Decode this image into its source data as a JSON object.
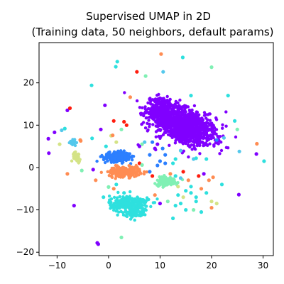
{
  "chart_data": {
    "type": "scatter",
    "title": "Supervised UMAP in 2D",
    "subtitle": "(Training data, 50 neighbors, default params)",
    "xlabel": "",
    "ylabel": "",
    "xlim": [
      -13.5,
      32
    ],
    "ylim": [
      -20.8,
      29.5
    ],
    "xticks": [
      -10,
      0,
      10,
      20,
      30
    ],
    "yticks": [
      -20,
      -10,
      0,
      10,
      20
    ],
    "grid": false,
    "legend": "none",
    "colormap": "rainbow",
    "colors": {
      "violet": "#8000ff",
      "blue": "#2c7fff",
      "cyan": "#2ee0de",
      "mint": "#80f0b4",
      "khaki": "#d4e386",
      "orange": "#ff8c52",
      "red": "#ff1c0e",
      "lightblue": "#55c8ec"
    },
    "clusters": [
      {
        "color": "violet",
        "cx": 14.5,
        "cy": 10.0,
        "sx": 3.4,
        "sy": 2.0,
        "rot": -30,
        "n": 1100
      },
      {
        "color": "violet",
        "cx": 10.0,
        "cy": 13.8,
        "sx": 1.0,
        "sy": 1.5,
        "rot": 0,
        "n": 180
      },
      {
        "color": "blue",
        "cx": 1.6,
        "cy": 2.5,
        "sx": 1.3,
        "sy": 0.55,
        "rot": 0,
        "n": 230
      },
      {
        "color": "orange",
        "cx": 3.1,
        "cy": -1.0,
        "sx": 1.5,
        "sy": 0.6,
        "rot": 0,
        "n": 220
      },
      {
        "color": "cyan",
        "cx": 4.0,
        "cy": -8.6,
        "sx": 1.9,
        "sy": 1.0,
        "rot": 0,
        "n": 230
      },
      {
        "color": "cyan",
        "cx": 5.0,
        "cy": -10.7,
        "sx": 0.9,
        "sy": 0.6,
        "rot": 0,
        "n": 70
      },
      {
        "color": "mint",
        "cx": 11.3,
        "cy": -3.2,
        "sx": 1.1,
        "sy": 0.55,
        "rot": 0,
        "n": 110
      },
      {
        "color": "khaki",
        "cx": -6.2,
        "cy": 2.5,
        "sx": 0.35,
        "sy": 0.55,
        "rot": 0,
        "n": 45
      },
      {
        "color": "lightblue",
        "cx": -6.8,
        "cy": 6.0,
        "sx": 0.35,
        "sy": 0.4,
        "rot": 0,
        "n": 25
      }
    ],
    "scatter_points": [
      {
        "x": -10.5,
        "y": 8.3,
        "color": "violet"
      },
      {
        "x": -9.1,
        "y": 8.8,
        "color": "lightblue"
      },
      {
        "x": -8.5,
        "y": 9.2,
        "color": "cyan"
      },
      {
        "x": -8.0,
        "y": 13.5,
        "color": "violet"
      },
      {
        "x": -7.5,
        "y": 14.0,
        "color": "red"
      },
      {
        "x": -9.5,
        "y": 5.5,
        "color": "khaki"
      },
      {
        "x": -11.7,
        "y": 6.8,
        "color": "violet"
      },
      {
        "x": -11.6,
        "y": 3.4,
        "color": "violet"
      },
      {
        "x": -5.5,
        "y": 6.5,
        "color": "orange"
      },
      {
        "x": -5.4,
        "y": 6.3,
        "color": "orange"
      },
      {
        "x": -3.2,
        "y": 6.9,
        "color": "cyan"
      },
      {
        "x": -3.3,
        "y": 19.4,
        "color": "cyan"
      },
      {
        "x": -0.7,
        "y": 14.7,
        "color": "violet"
      },
      {
        "x": 1.4,
        "y": 23.8,
        "color": "cyan"
      },
      {
        "x": 1.7,
        "y": 25.0,
        "color": "cyan"
      },
      {
        "x": 1.0,
        "y": 11.0,
        "color": "red"
      },
      {
        "x": 3.0,
        "y": 10.8,
        "color": "red"
      },
      {
        "x": 3.5,
        "y": 10.0,
        "color": "red"
      },
      {
        "x": 4.2,
        "y": 16.6,
        "color": "orange"
      },
      {
        "x": 5.5,
        "y": 22.6,
        "color": "red"
      },
      {
        "x": 7.2,
        "y": 21.6,
        "color": "mint"
      },
      {
        "x": 10.2,
        "y": 26.8,
        "color": "orange"
      },
      {
        "x": 10.6,
        "y": 22.6,
        "color": "lightblue"
      },
      {
        "x": 14.4,
        "y": 26.0,
        "color": "cyan"
      },
      {
        "x": 20.0,
        "y": 23.7,
        "color": "mint"
      },
      {
        "x": 16.0,
        "y": 17.0,
        "color": "cyan"
      },
      {
        "x": 23.2,
        "y": 17.0,
        "color": "cyan"
      },
      {
        "x": 24.5,
        "y": 11.0,
        "color": "cyan"
      },
      {
        "x": 25.0,
        "y": 9.0,
        "color": "mint"
      },
      {
        "x": 22.4,
        "y": 7.0,
        "color": "lightblue"
      },
      {
        "x": 25.4,
        "y": 3.8,
        "color": "lightblue"
      },
      {
        "x": 28.8,
        "y": 5.6,
        "color": "orange"
      },
      {
        "x": 28.7,
        "y": 3.2,
        "color": "violet"
      },
      {
        "x": 30.2,
        "y": 1.5,
        "color": "cyan"
      },
      {
        "x": 25.3,
        "y": -6.4,
        "color": "violet"
      },
      {
        "x": 22.0,
        "y": -4.0,
        "color": "cyan"
      },
      {
        "x": 20.3,
        "y": -2.3,
        "color": "orange"
      },
      {
        "x": 21.0,
        "y": 6.5,
        "color": "blue"
      },
      {
        "x": 14.0,
        "y": 4.0,
        "color": "lightblue"
      },
      {
        "x": 16.5,
        "y": 2.0,
        "color": "lightblue"
      },
      {
        "x": 17.0,
        "y": 2.2,
        "color": "cyan"
      },
      {
        "x": 19.0,
        "y": 2.0,
        "color": "cyan"
      },
      {
        "x": 13.0,
        "y": 2.0,
        "color": "cyan"
      },
      {
        "x": 12.5,
        "y": 1.0,
        "color": "cyan"
      },
      {
        "x": 10.5,
        "y": 4.5,
        "color": "blue"
      },
      {
        "x": 11.0,
        "y": 3.0,
        "color": "blue"
      },
      {
        "x": 11.0,
        "y": 1.0,
        "color": "blue"
      },
      {
        "x": 10.0,
        "y": 1.5,
        "color": "blue"
      },
      {
        "x": 9.5,
        "y": 0.5,
        "color": "blue"
      },
      {
        "x": 8.0,
        "y": 3.0,
        "color": "blue"
      },
      {
        "x": 8.5,
        "y": 6.0,
        "color": "blue"
      },
      {
        "x": 7.0,
        "y": 6.0,
        "color": "lightblue"
      },
      {
        "x": 6.5,
        "y": 5.5,
        "color": "mint"
      },
      {
        "x": 6.0,
        "y": 5.0,
        "color": "violet"
      },
      {
        "x": 9.0,
        "y": 4.5,
        "color": "violet"
      },
      {
        "x": 9.5,
        "y": 5.5,
        "color": "violet"
      },
      {
        "x": 6.0,
        "y": 1.0,
        "color": "red"
      },
      {
        "x": 6.5,
        "y": 0.6,
        "color": "mint"
      },
      {
        "x": 5.8,
        "y": -0.5,
        "color": "orange"
      },
      {
        "x": -0.5,
        "y": 5.0,
        "color": "cyan"
      },
      {
        "x": 0.5,
        "y": 7.5,
        "color": "khaki"
      },
      {
        "x": 0.8,
        "y": 7.6,
        "color": "orange"
      },
      {
        "x": 1.5,
        "y": 6.0,
        "color": "khaki"
      },
      {
        "x": 2.5,
        "y": 9.0,
        "color": "mint"
      },
      {
        "x": -1.5,
        "y": 9.0,
        "color": "violet"
      },
      {
        "x": -8.0,
        "y": -1.5,
        "color": "orange"
      },
      {
        "x": -5.2,
        "y": -0.7,
        "color": "mint"
      },
      {
        "x": -3.0,
        "y": -0.5,
        "color": "violet"
      },
      {
        "x": -2.5,
        "y": -3.0,
        "color": "orange"
      },
      {
        "x": 0.0,
        "y": -4.6,
        "color": "mint"
      },
      {
        "x": 1.0,
        "y": -5.0,
        "color": "orange"
      },
      {
        "x": 1.5,
        "y": -4.0,
        "color": "cyan"
      },
      {
        "x": -1.0,
        "y": -7.0,
        "color": "cyan"
      },
      {
        "x": 3.0,
        "y": -6.0,
        "color": "cyan"
      },
      {
        "x": 0.5,
        "y": -9.0,
        "color": "cyan"
      },
      {
        "x": 2.5,
        "y": -16.5,
        "color": "mint"
      },
      {
        "x": -2.2,
        "y": -17.8,
        "color": "violet"
      },
      {
        "x": -2.0,
        "y": -18.1,
        "color": "violet"
      },
      {
        "x": -6.7,
        "y": -9.0,
        "color": "violet"
      },
      {
        "x": 8.0,
        "y": -1.0,
        "color": "blue"
      },
      {
        "x": 8.5,
        "y": -2.0,
        "color": "red"
      },
      {
        "x": 12.0,
        "y": -1.5,
        "color": "orange"
      },
      {
        "x": 13.0,
        "y": -2.0,
        "color": "cyan"
      },
      {
        "x": 14.5,
        "y": -1.0,
        "color": "red"
      },
      {
        "x": 14.0,
        "y": -2.5,
        "color": "lightblue"
      },
      {
        "x": 13.5,
        "y": -4.5,
        "color": "khaki"
      },
      {
        "x": 15.5,
        "y": -3.0,
        "color": "orange"
      },
      {
        "x": 16.0,
        "y": -4.5,
        "color": "cyan"
      },
      {
        "x": 17.5,
        "y": -2.0,
        "color": "red"
      },
      {
        "x": 18.5,
        "y": -1.5,
        "color": "violet"
      },
      {
        "x": 19.5,
        "y": -3.0,
        "color": "orange"
      },
      {
        "x": 18.0,
        "y": -5.0,
        "color": "orange"
      },
      {
        "x": 19.0,
        "y": -6.0,
        "color": "cyan"
      },
      {
        "x": 17.0,
        "y": -7.0,
        "color": "cyan"
      },
      {
        "x": 16.0,
        "y": -6.0,
        "color": "cyan"
      },
      {
        "x": 15.0,
        "y": -5.5,
        "color": "cyan"
      },
      {
        "x": 14.5,
        "y": -7.0,
        "color": "khaki"
      },
      {
        "x": 13.5,
        "y": -6.5,
        "color": "cyan"
      },
      {
        "x": 14.0,
        "y": -8.5,
        "color": "cyan"
      },
      {
        "x": 17.0,
        "y": -8.0,
        "color": "cyan"
      },
      {
        "x": 16.5,
        "y": -10.0,
        "color": "mint"
      },
      {
        "x": 20.0,
        "y": -8.0,
        "color": "khaki"
      },
      {
        "x": 21.0,
        "y": -8.5,
        "color": "khaki"
      },
      {
        "x": 20.0,
        "y": -9.5,
        "color": "orange"
      },
      {
        "x": 18.0,
        "y": -10.5,
        "color": "cyan"
      },
      {
        "x": 13.0,
        "y": -9.0,
        "color": "cyan"
      },
      {
        "x": 11.5,
        "y": -8.0,
        "color": "mint"
      },
      {
        "x": 9.0,
        "y": -6.5,
        "color": "orange"
      },
      {
        "x": 12.5,
        "y": -12.0,
        "color": "cyan"
      },
      {
        "x": 15.0,
        "y": -10.0,
        "color": "cyan"
      },
      {
        "x": 10.0,
        "y": -8.5,
        "color": "violet"
      }
    ]
  }
}
